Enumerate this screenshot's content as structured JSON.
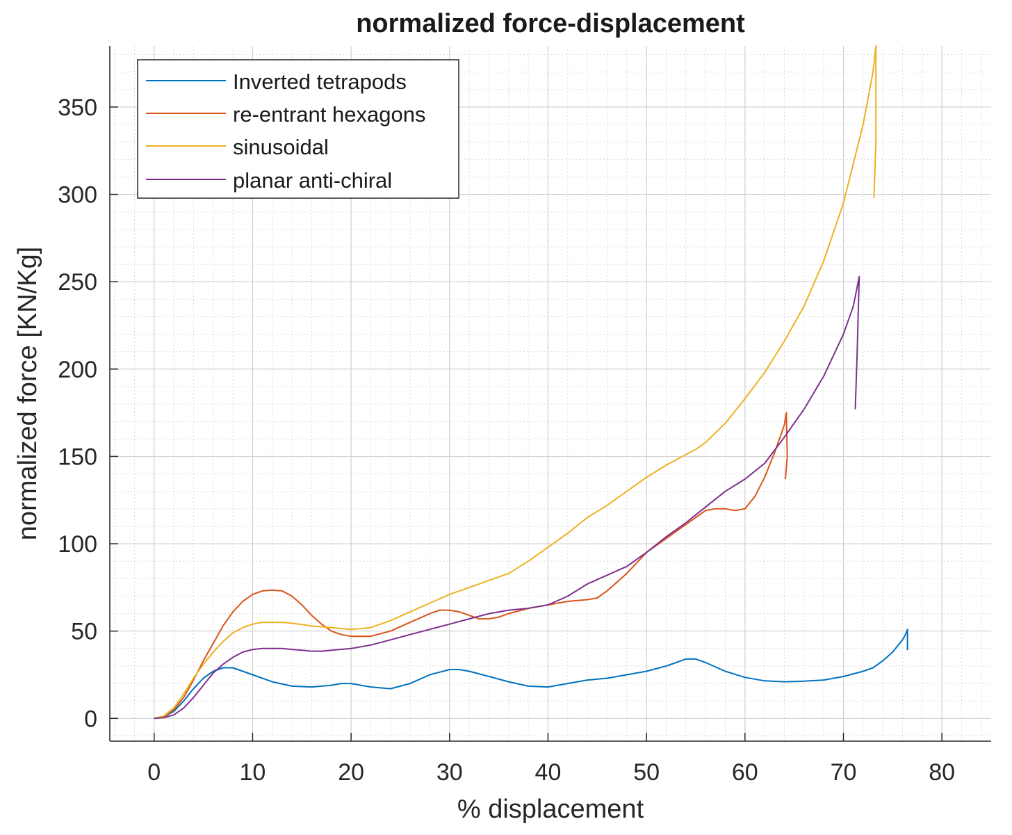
{
  "chart_data": {
    "type": "line",
    "title": "normalized force-displacement",
    "xlabel": "% displacement",
    "ylabel": "normalized force [KN/Kg]",
    "xlim": [
      -4.5,
      85
    ],
    "ylim": [
      -13,
      385
    ],
    "xticks": [
      0,
      10,
      20,
      30,
      40,
      50,
      60,
      70,
      80
    ],
    "yticks": [
      0,
      50,
      100,
      150,
      200,
      250,
      300,
      350
    ],
    "grid": true,
    "minor_grid": true,
    "legend_position": "top-left",
    "series": [
      {
        "name": "Inverted tetrapods",
        "color": "#0072BD",
        "x": [
          0,
          1,
          2,
          3,
          4,
          5,
          6,
          7,
          8,
          9,
          10,
          12,
          14,
          16,
          18,
          19,
          20,
          22,
          24,
          26,
          28,
          30,
          31,
          32,
          34,
          36,
          38,
          40,
          42,
          44,
          46,
          48,
          50,
          52,
          54,
          55,
          56,
          58,
          60,
          62,
          64,
          66,
          68,
          70,
          72,
          73,
          74,
          75,
          76,
          76.3,
          76.5,
          76.5
        ],
        "y": [
          0,
          1,
          4,
          10,
          17,
          23,
          27,
          29,
          29,
          27,
          25,
          21,
          18.5,
          18,
          19,
          20,
          20,
          18,
          17,
          20,
          25,
          28,
          28,
          27,
          24,
          21,
          18.5,
          18,
          20,
          22,
          23,
          25,
          27,
          30,
          34,
          34,
          32,
          27,
          23.5,
          21.5,
          21,
          21.3,
          22,
          24,
          27,
          29,
          33,
          38,
          45,
          48,
          51,
          39
        ]
      },
      {
        "name": "re-entrant hexagons",
        "color": "#D95319",
        "x": [
          0,
          1,
          2,
          3,
          4,
          5,
          6,
          7,
          8,
          9,
          10,
          11,
          12,
          13,
          14,
          15,
          16,
          17,
          18,
          19,
          20,
          22,
          24,
          26,
          28,
          29,
          30,
          31,
          32,
          33,
          34,
          35,
          36,
          38,
          40,
          42,
          44,
          45,
          46,
          48,
          50,
          52,
          54,
          56,
          57,
          58,
          59,
          60,
          61,
          62,
          63,
          64,
          64.2,
          64.3,
          64.1
        ],
        "y": [
          0,
          1,
          5,
          12,
          22,
          33,
          43,
          53,
          61,
          67,
          71,
          73,
          73.5,
          73,
          70,
          65,
          59,
          54,
          50,
          48,
          47,
          47,
          50,
          55,
          60,
          62,
          62,
          61,
          59,
          57,
          57,
          58,
          60,
          63,
          65,
          67,
          68,
          69,
          73,
          83,
          95,
          103,
          111,
          119,
          120,
          120,
          119,
          120,
          127,
          138,
          152,
          168,
          175,
          150,
          137
        ]
      },
      {
        "name": "sinusoidal",
        "color": "#EDB120",
        "x": [
          0,
          1,
          2,
          3,
          4,
          5,
          6,
          7,
          8,
          9,
          10,
          11,
          12,
          13,
          14,
          16,
          18,
          20,
          22,
          24,
          26,
          28,
          30,
          32,
          34,
          36,
          38,
          40,
          42,
          44,
          46,
          48,
          50,
          52,
          54,
          55,
          56,
          58,
          60,
          62,
          64,
          66,
          68,
          70,
          72,
          73,
          73.3,
          73.3,
          73.1
        ],
        "y": [
          0,
          1.5,
          6,
          14,
          23,
          31,
          38,
          44,
          49,
          52,
          54,
          55,
          55,
          55,
          54.5,
          53,
          52,
          51,
          52,
          56,
          61,
          66,
          71,
          75,
          79,
          83,
          90,
          98,
          106,
          115,
          122,
          130,
          138,
          145,
          151,
          154,
          158,
          169,
          183,
          198,
          216,
          236,
          262,
          295,
          340,
          370,
          385,
          330,
          298
        ]
      },
      {
        "name": "planar anti-chiral",
        "color": "#7E2F8E",
        "x": [
          0,
          1,
          2,
          3,
          4,
          5,
          6,
          7,
          8,
          9,
          10,
          11,
          12,
          13,
          14,
          15,
          16,
          17,
          18,
          20,
          22,
          24,
          26,
          28,
          30,
          32,
          34,
          36,
          38,
          40,
          42,
          44,
          46,
          48,
          50,
          52,
          54,
          56,
          58,
          60,
          62,
          64,
          66,
          68,
          70,
          71,
          71.6,
          71.4,
          71.2
        ],
        "y": [
          0,
          0.5,
          2,
          6,
          12,
          19,
          26,
          31,
          35,
          38,
          39.5,
          40,
          40,
          40,
          39.5,
          39,
          38.5,
          38.5,
          39,
          40,
          42,
          45,
          48,
          51,
          54,
          57,
          60,
          62,
          63,
          65,
          70,
          77,
          82,
          87,
          95,
          104,
          112,
          121,
          130,
          137,
          146,
          161,
          177,
          196,
          220,
          236,
          253,
          210,
          177
        ]
      }
    ]
  }
}
